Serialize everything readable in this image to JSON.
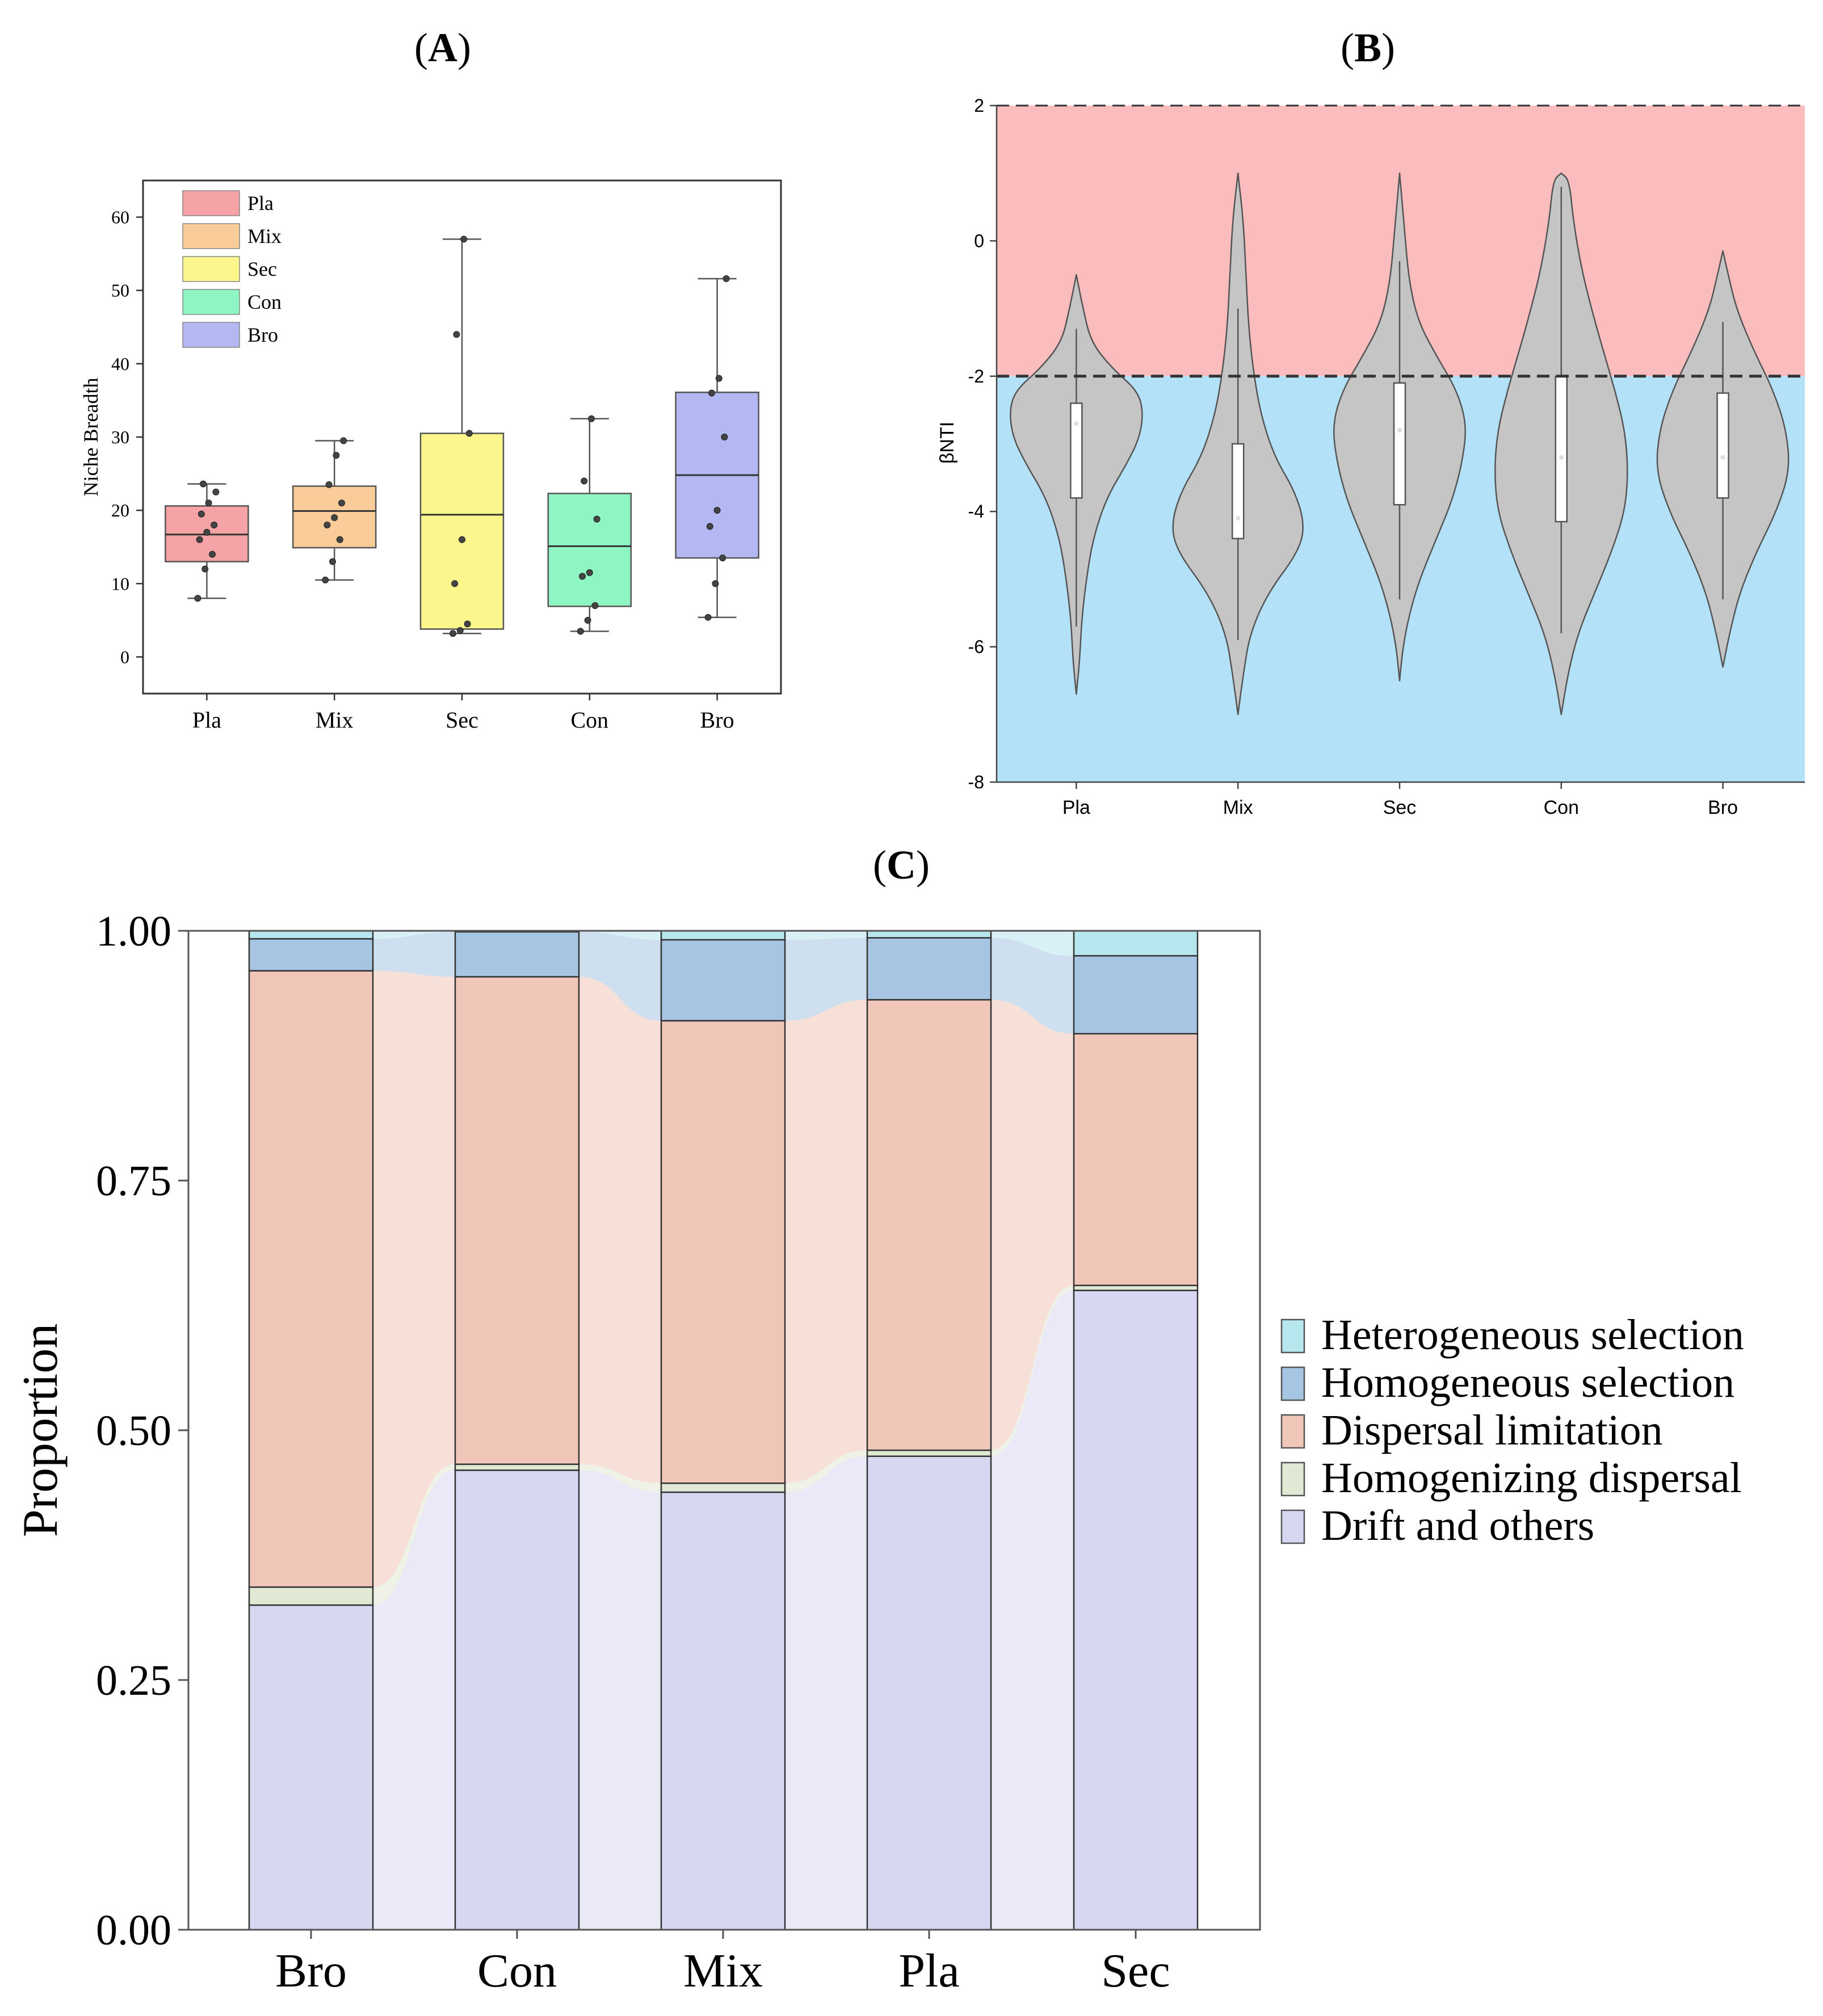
{
  "panels": {
    "a": {
      "label": "A"
    },
    "b": {
      "label": "B"
    },
    "c": {
      "label": "C"
    }
  },
  "chart_data": [
    {
      "id": "A",
      "type": "box",
      "title": "",
      "ylabel": "Niche Breadth",
      "xlabel": "",
      "ylim": [
        -5,
        65
      ],
      "yticks": [
        0,
        10,
        20,
        30,
        40,
        50,
        60
      ],
      "categories": [
        "Pla",
        "Mix",
        "Sec",
        "Con",
        "Bro"
      ],
      "legend": [
        "Pla",
        "Mix",
        "Sec",
        "Con",
        "Bro"
      ],
      "colors": [
        "#f5a3a6",
        "#f9cc9a",
        "#fbf78c",
        "#8ff5c2",
        "#b3b7f2"
      ],
      "boxes": [
        {
          "name": "Pla",
          "min": 8,
          "q1": 13,
          "median": 16.7,
          "q3": 20.6,
          "max": 23.6
        },
        {
          "name": "Mix",
          "min": 10.5,
          "q1": 14.9,
          "median": 19.9,
          "q3": 23.3,
          "max": 29.5
        },
        {
          "name": "Sec",
          "min": 3.2,
          "q1": 3.8,
          "median": 19.4,
          "q3": 30.5,
          "max": 57
        },
        {
          "name": "Con",
          "min": 3.5,
          "q1": 6.9,
          "median": 15.1,
          "q3": 22.3,
          "max": 32.5
        },
        {
          "name": "Bro",
          "min": 5.4,
          "q1": 13.5,
          "median": 24.8,
          "q3": 36.1,
          "max": 51.6
        }
      ],
      "points": [
        [
          8,
          12,
          14,
          16,
          17,
          18,
          19.5,
          21,
          22.5,
          23.6
        ],
        [
          10.5,
          13,
          16,
          18,
          19,
          21,
          23.5,
          27.5,
          29.5
        ],
        [
          3.2,
          3.6,
          4.5,
          10,
          16,
          30.5,
          44,
          57
        ],
        [
          3.5,
          5,
          7,
          11,
          11.5,
          18.8,
          24,
          32.5
        ],
        [
          5.4,
          10,
          13.5,
          17.8,
          20,
          30,
          36,
          38,
          51.6
        ]
      ]
    },
    {
      "id": "B",
      "type": "violin",
      "ylabel": "βNTI",
      "ylim": [
        -8,
        2
      ],
      "yticks": [
        2,
        0,
        -2,
        -4,
        -6,
        -8
      ],
      "threshold_lines": [
        2,
        -2
      ],
      "regions": [
        {
          "from": -2,
          "to": 2,
          "color": "#fbbcbd"
        },
        {
          "from": -8,
          "to": -2,
          "color": "#b3e2f8"
        }
      ],
      "categories": [
        "Pla",
        "Mix",
        "Sec",
        "Con",
        "Bro"
      ],
      "violin_color": "#c5c5c5",
      "violins": [
        {
          "name": "Pla",
          "min": -6.7,
          "max": -0.5,
          "q1": -3.8,
          "median": -2.7,
          "q3": -2.4,
          "whisker_low": -5.7,
          "whisker_high": -1.3,
          "density": [
            [
              -6.7,
              0
            ],
            [
              -6.2,
              0.05
            ],
            [
              -5.6,
              0.08
            ],
            [
              -5.0,
              0.15
            ],
            [
              -4.4,
              0.25
            ],
            [
              -3.8,
              0.45
            ],
            [
              -3.3,
              0.75
            ],
            [
              -2.9,
              0.95
            ],
            [
              -2.5,
              1.0
            ],
            [
              -2.2,
              0.9
            ],
            [
              -1.9,
              0.55
            ],
            [
              -1.5,
              0.22
            ],
            [
              -1.0,
              0.1
            ],
            [
              -0.5,
              0
            ]
          ]
        },
        {
          "name": "Mix",
          "min": -7.0,
          "max": 1.0,
          "q1": -4.4,
          "median": -4.1,
          "q3": -3.0,
          "whisker_low": -5.9,
          "whisker_high": -1.0,
          "density": [
            [
              -7.0,
              0
            ],
            [
              -6.4,
              0.08
            ],
            [
              -5.8,
              0.18
            ],
            [
              -5.2,
              0.45
            ],
            [
              -4.6,
              0.9
            ],
            [
              -4.2,
              1.0
            ],
            [
              -3.7,
              0.85
            ],
            [
              -3.2,
              0.55
            ],
            [
              -2.6,
              0.35
            ],
            [
              -2.0,
              0.24
            ],
            [
              -1.3,
              0.16
            ],
            [
              -0.5,
              0.12
            ],
            [
              0.3,
              0.08
            ],
            [
              1.0,
              0
            ]
          ]
        },
        {
          "name": "Sec",
          "min": -6.5,
          "max": 1.0,
          "q1": -3.9,
          "median": -2.8,
          "q3": -2.1,
          "whisker_low": -5.3,
          "whisker_high": -0.3,
          "density": [
            [
              -6.5,
              0
            ],
            [
              -6.0,
              0.05
            ],
            [
              -5.5,
              0.15
            ],
            [
              -5.0,
              0.3
            ],
            [
              -4.4,
              0.55
            ],
            [
              -3.8,
              0.8
            ],
            [
              -3.2,
              0.95
            ],
            [
              -2.7,
              1.0
            ],
            [
              -2.2,
              0.85
            ],
            [
              -1.7,
              0.55
            ],
            [
              -1.2,
              0.28
            ],
            [
              -0.6,
              0.14
            ],
            [
              0.2,
              0.07
            ],
            [
              1.0,
              0
            ]
          ]
        },
        {
          "name": "Con",
          "min": -7.0,
          "max": 1.0,
          "q1": -4.15,
          "median": -3.2,
          "q3": -2.0,
          "whisker_low": -5.8,
          "whisker_high": 0.8,
          "density": [
            [
              -7.0,
              0
            ],
            [
              -6.4,
              0.1
            ],
            [
              -5.8,
              0.25
            ],
            [
              -5.2,
              0.5
            ],
            [
              -4.6,
              0.75
            ],
            [
              -4.0,
              0.95
            ],
            [
              -3.4,
              1.0
            ],
            [
              -2.8,
              0.95
            ],
            [
              -2.2,
              0.8
            ],
            [
              -1.6,
              0.62
            ],
            [
              -1.0,
              0.45
            ],
            [
              -0.4,
              0.3
            ],
            [
              0.3,
              0.18
            ],
            [
              0.9,
              0.12
            ],
            [
              1.0,
              0
            ]
          ]
        },
        {
          "name": "Bro",
          "min": -6.3,
          "max": -0.15,
          "q1": -3.8,
          "median": -3.2,
          "q3": -2.25,
          "whisker_low": -5.3,
          "whisker_high": -1.2,
          "density": [
            [
              -6.3,
              0
            ],
            [
              -5.8,
              0.1
            ],
            [
              -5.2,
              0.25
            ],
            [
              -4.6,
              0.5
            ],
            [
              -4.0,
              0.8
            ],
            [
              -3.4,
              1.0
            ],
            [
              -2.8,
              0.95
            ],
            [
              -2.2,
              0.75
            ],
            [
              -1.6,
              0.45
            ],
            [
              -1.0,
              0.2
            ],
            [
              -0.5,
              0.08
            ],
            [
              -0.15,
              0
            ]
          ]
        }
      ]
    },
    {
      "id": "C",
      "type": "stacked_bar",
      "ylabel": "Proportion",
      "xlabel": "",
      "ylim": [
        0,
        1
      ],
      "yticks": [
        "0.00",
        "0.25",
        "0.50",
        "0.75",
        "1.00"
      ],
      "categories": [
        "Bro",
        "Con",
        "Mix",
        "Pla",
        "Sec"
      ],
      "series": [
        {
          "name": "Drift and others",
          "color": "#d7d7f2",
          "values": [
            0.325,
            0.46,
            0.438,
            0.474,
            0.64
          ]
        },
        {
          "name": "Homogenizing dispersal",
          "color": "#e1e8d3",
          "values": [
            0.018,
            0.006,
            0.009,
            0.006,
            0.005
          ]
        },
        {
          "name": "Dispersal limitation",
          "color": "#efc6b8",
          "values": [
            0.617,
            0.488,
            0.463,
            0.451,
            0.252
          ]
        },
        {
          "name": "Homogeneous selection",
          "color": "#a5c5e3",
          "values": [
            0.032,
            0.045,
            0.081,
            0.062,
            0.078
          ]
        },
        {
          "name": "Heterogeneous selection",
          "color": "#b6e6ee",
          "values": [
            0.008,
            0.001,
            0.009,
            0.007,
            0.025
          ]
        }
      ],
      "legend": [
        "Heterogeneous selection",
        "Homogeneous selection",
        "Dispersal limitation",
        "Homogenizing dispersal",
        "Drift and others"
      ]
    }
  ]
}
